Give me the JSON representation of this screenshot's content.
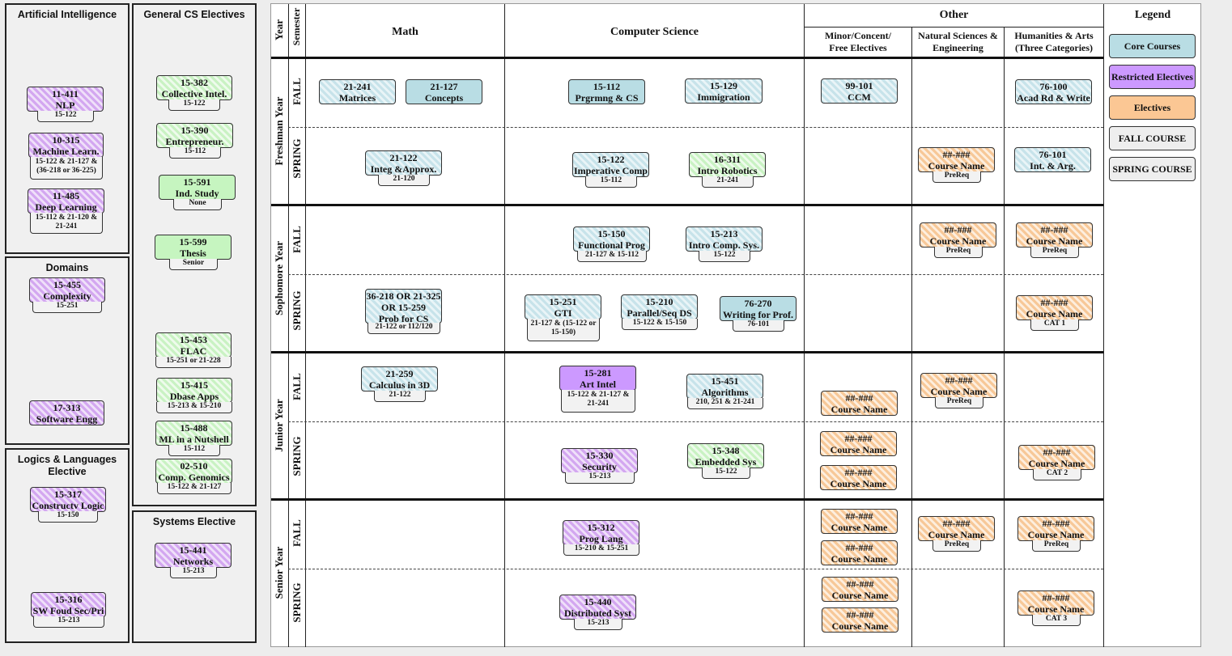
{
  "panels": {
    "ai": "Artificial Intelligence",
    "general": "General CS Electives",
    "domains": "Domains",
    "logics": "Logics & Languages Elective",
    "systems": "Systems Elective"
  },
  "headers": {
    "year": "Year",
    "semester": "Semester",
    "math": "Math",
    "cs": "Computer Science",
    "other": "Other",
    "minor": "Minor/Concent/ Free Electives",
    "natsci": "Natural Sciences & Engineering",
    "hum": "Humanities & Arts (Three Categories)",
    "legend": "Legend"
  },
  "years": [
    "Freshman Year",
    "Sophomore Year",
    "Junior Year",
    "Senior Year"
  ],
  "semesters": [
    "FALL",
    "SPRING",
    "FALL",
    "SPRING",
    "FALL",
    "SPRING",
    "FALL",
    "SPRING"
  ],
  "legend": [
    "Core Courses",
    "Restricted Electives",
    "Electives",
    "FALL COURSE",
    "SPRING COURSE"
  ],
  "colors": {
    "core": "#b9dde4",
    "restricted": "#cc99ff",
    "electives": "#fbc794",
    "green": "#c6f5c0"
  },
  "courses": {
    "ai1": {
      "code": "11-411",
      "name": "NLP",
      "pre": "15-122"
    },
    "ai2": {
      "code": "10-315",
      "name": "Machine Learn.",
      "pre": "15-122 & 21-127 & (36-218 or 36-225)"
    },
    "ai3": {
      "code": "11-485",
      "name": "Deep Learning",
      "pre": "15-112 & 21-120 & 21-241"
    },
    "dom1": {
      "code": "15-455",
      "name": "Complexity",
      "pre": "15-251"
    },
    "dom2": {
      "code": "17-313",
      "name": "Software Engg",
      "pre": ""
    },
    "log1": {
      "code": "15-317",
      "name": "Constructv Logic",
      "pre": "15-150"
    },
    "log2": {
      "code": "15-316",
      "name": "SW Foud Sec/Pri",
      "pre": "15-213"
    },
    "gen1": {
      "code": "15-382",
      "name": "Collective Intel.",
      "pre": "15-122"
    },
    "gen2": {
      "code": "15-390",
      "name": "Entrepreneur.",
      "pre": "15-112"
    },
    "gen3": {
      "code": "15-591",
      "name": "Ind. Study",
      "pre": "None"
    },
    "gen4": {
      "code": "15-599",
      "name": "Thesis",
      "pre": "Senior"
    },
    "gen5": {
      "code": "15-453",
      "name": "FLAC",
      "pre": "15-251 or 21-228"
    },
    "gen6": {
      "code": "15-415",
      "name": "Dbase Apps",
      "pre": "15-213 & 15-210"
    },
    "gen7": {
      "code": "15-488",
      "name": "ML in a Nutshell",
      "pre": "15-112"
    },
    "gen8": {
      "code": "02-510",
      "name": "Comp. Genomics",
      "pre": "15-122 & 21-127"
    },
    "sys1": {
      "code": "15-441",
      "name": "Networks",
      "pre": "15-213"
    },
    "f1m1": {
      "code": "21-241",
      "name": "Matrices",
      "pre": ""
    },
    "f1m2": {
      "code": "21-127",
      "name": "Concepts",
      "pre": ""
    },
    "f1c1": {
      "code": "15-112",
      "name": "Prgrmng & CS",
      "pre": ""
    },
    "f1c2": {
      "code": "15-129",
      "name": "Immigration",
      "pre": ""
    },
    "f1o1": {
      "code": "99-101",
      "name": "CCM",
      "pre": ""
    },
    "f1h1": {
      "code": "76-100",
      "name": "Acad Rd & Write",
      "pre": ""
    },
    "s1m1": {
      "code": "21-122",
      "name": "Integ &Approx.",
      "pre": "21-120"
    },
    "s1c1": {
      "code": "15-122",
      "name": "Imperative Comp",
      "pre": "15-112"
    },
    "s1c2": {
      "code": "16-311",
      "name": "Intro Robotics",
      "pre": "21-241"
    },
    "s1n1": {
      "code": "##-###",
      "name": "Course Name",
      "pre": "PreReq"
    },
    "s1h1": {
      "code": "76-101",
      "name": "Int. & Arg.",
      "pre": ""
    },
    "f2c1": {
      "code": "15-150",
      "name": "Functional Prog",
      "pre": "21-127 & 15-112"
    },
    "f2c2": {
      "code": "15-213",
      "name": "Intro Comp. Sys.",
      "pre": "15-122"
    },
    "f2n1": {
      "code": "##-###",
      "name": "Course Name",
      "pre": "PreReq"
    },
    "f2h1": {
      "code": "##-###",
      "name": "Course Name",
      "pre": "PreReq"
    },
    "s2m1": {
      "code": "36-218 OR 21-325 OR 15-259",
      "name": "Prob for CS",
      "pre": "21-122 or 112/120"
    },
    "s2c1": {
      "code": "15-251",
      "name": "GTI",
      "pre": "21-127 & (15-122 or 15-150)"
    },
    "s2c2": {
      "code": "15-210",
      "name": "Parallel/Seq DS",
      "pre": "15-122 & 15-150"
    },
    "s2c3": {
      "code": "76-270",
      "name": "Writing for Prof.",
      "pre": "76-101"
    },
    "s2h1": {
      "code": "##-###",
      "name": "Course Name",
      "pre": "CAT 1"
    },
    "f3m1": {
      "code": "21-259",
      "name": "Calculus in 3D",
      "pre": "21-122"
    },
    "f3c1": {
      "code": "15-281",
      "name": "Art Intel",
      "pre": "15-122 & 21-127 & 21-241"
    },
    "f3c2": {
      "code": "15-451",
      "name": "Algorithms",
      "pre": "210, 251 & 21-241"
    },
    "f3o1": {
      "code": "##-###",
      "name": "Course Name",
      "pre": ""
    },
    "f3n1": {
      "code": "##-###",
      "name": "Course Name",
      "pre": "PreReq"
    },
    "s3c1": {
      "code": "15-330",
      "name": "Security",
      "pre": "15-213"
    },
    "s3c2": {
      "code": "15-348",
      "name": "Embedded Sys",
      "pre": "15-122"
    },
    "s3o1": {
      "code": "##-###",
      "name": "Course Name",
      "pre": ""
    },
    "s3o2": {
      "code": "##-###",
      "name": "Course Name",
      "pre": ""
    },
    "s3h1": {
      "code": "##-###",
      "name": "Course Name",
      "pre": "CAT 2"
    },
    "f4c1": {
      "code": "15-312",
      "name": "Prog Lang",
      "pre": "15-210 & 15-251"
    },
    "f4o1": {
      "code": "##-###",
      "name": "Course Name",
      "pre": ""
    },
    "f4o2": {
      "code": "##-###",
      "name": "Course Name",
      "pre": ""
    },
    "f4n1": {
      "code": "##-###",
      "name": "Course Name",
      "pre": "PreReq"
    },
    "f4h1": {
      "code": "##-###",
      "name": "Course Name",
      "pre": "PreReq"
    },
    "s4c1": {
      "code": "15-440",
      "name": "Distributed Syst",
      "pre": "15-213"
    },
    "s4o1": {
      "code": "##-###",
      "name": "Course Name",
      "pre": ""
    },
    "s4o2": {
      "code": "##-###",
      "name": "Course Name",
      "pre": ""
    },
    "s4h1": {
      "code": "##-###",
      "name": "Course Name",
      "pre": "CAT 3"
    }
  }
}
